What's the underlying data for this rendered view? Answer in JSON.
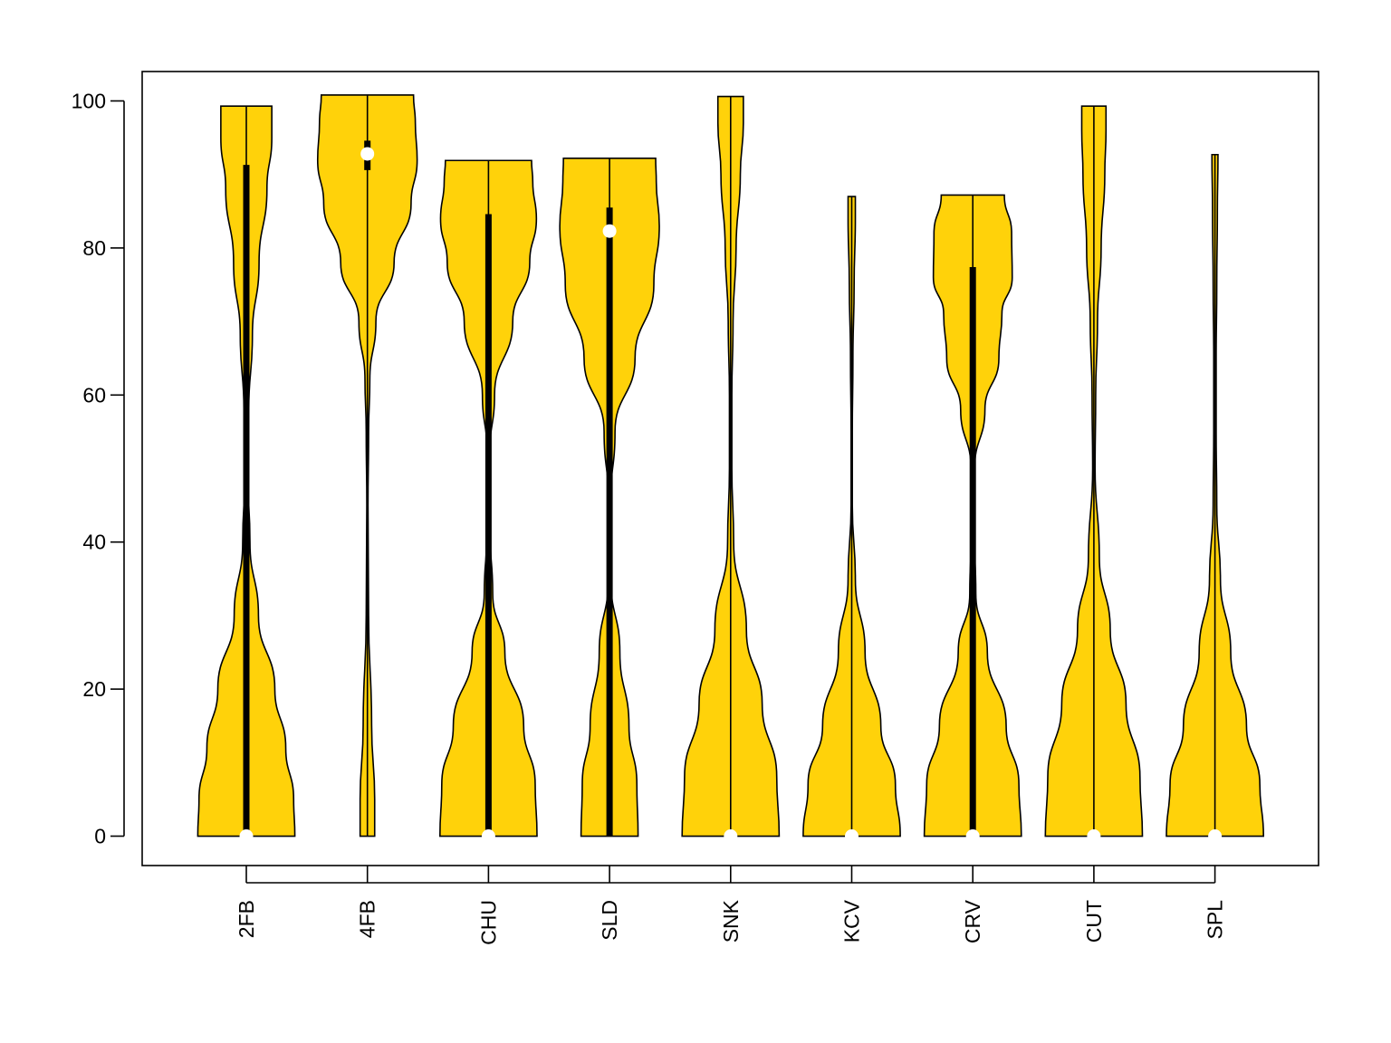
{
  "chart_data": {
    "type": "violin",
    "title": "",
    "xlabel": "",
    "ylabel": "",
    "categories": [
      "2FB",
      "4FB",
      "CHU",
      "SLD",
      "SNK",
      "KCV",
      "CRV",
      "CUT",
      "SPL"
    ],
    "ylim": [
      -4,
      104
    ],
    "yticks": [
      0,
      20,
      40,
      60,
      80,
      100
    ],
    "ytick_labels": [
      "0",
      "20",
      "40",
      "60",
      "80",
      "100"
    ],
    "grid": false,
    "legend": "none",
    "colors": {
      "fill": "#FFD20A",
      "outline": "#000000",
      "median": "#FFFFFF",
      "frame": "#000000"
    },
    "violins": [
      {
        "name": "2FB",
        "min": 0,
        "max": 99.3,
        "q1": 0,
        "median": 0,
        "q3": 91.3,
        "profile": [
          [
            0,
            0.8
          ],
          [
            5,
            0.78
          ],
          [
            12,
            0.65
          ],
          [
            20,
            0.47
          ],
          [
            30,
            0.2
          ],
          [
            40,
            0.06
          ],
          [
            50,
            0.02
          ],
          [
            58,
            0.04
          ],
          [
            68,
            0.1
          ],
          [
            78,
            0.21
          ],
          [
            88,
            0.34
          ],
          [
            95,
            0.42
          ],
          [
            99.3,
            0.42
          ]
        ]
      },
      {
        "name": "4FB",
        "min": 0,
        "max": 100.8,
        "q1": 90.6,
        "median": 92.8,
        "q3": 94.6,
        "profile": [
          [
            0,
            0.12
          ],
          [
            5,
            0.12
          ],
          [
            15,
            0.07
          ],
          [
            30,
            0.02
          ],
          [
            45,
            0.01
          ],
          [
            55,
            0.02
          ],
          [
            62,
            0.04
          ],
          [
            70,
            0.14
          ],
          [
            78,
            0.44
          ],
          [
            86,
            0.72
          ],
          [
            92,
            0.82
          ],
          [
            97,
            0.79
          ],
          [
            100.8,
            0.76
          ]
        ]
      },
      {
        "name": "CHU",
        "min": 0,
        "max": 91.9,
        "q1": 0,
        "median": 0,
        "q3": 84.6,
        "profile": [
          [
            0,
            0.8
          ],
          [
            7,
            0.77
          ],
          [
            15,
            0.58
          ],
          [
            25,
            0.27
          ],
          [
            33,
            0.07
          ],
          [
            42,
            0.02
          ],
          [
            52,
            0.02
          ],
          [
            60,
            0.1
          ],
          [
            70,
            0.4
          ],
          [
            78,
            0.68
          ],
          [
            84,
            0.79
          ],
          [
            89,
            0.73
          ],
          [
            91.9,
            0.71
          ]
        ]
      },
      {
        "name": "SLD",
        "min": 0,
        "max": 92.2,
        "q1": 0,
        "median": 82.3,
        "q3": 85.5,
        "profile": [
          [
            0,
            0.47
          ],
          [
            7,
            0.45
          ],
          [
            15,
            0.32
          ],
          [
            25,
            0.17
          ],
          [
            35,
            0.02
          ],
          [
            45,
            0.01
          ],
          [
            55,
            0.09
          ],
          [
            65,
            0.42
          ],
          [
            75,
            0.73
          ],
          [
            83,
            0.82
          ],
          [
            89,
            0.77
          ],
          [
            92.2,
            0.76
          ]
        ]
      },
      {
        "name": "SNK",
        "min": 0,
        "max": 100.6,
        "q1": 0,
        "median": 0,
        "q3": 0,
        "profile": [
          [
            0,
            0.8
          ],
          [
            8,
            0.76
          ],
          [
            18,
            0.52
          ],
          [
            28,
            0.26
          ],
          [
            40,
            0.05
          ],
          [
            50,
            0.02
          ],
          [
            60,
            0.02
          ],
          [
            70,
            0.04
          ],
          [
            80,
            0.09
          ],
          [
            90,
            0.16
          ],
          [
            97,
            0.21
          ],
          [
            100.6,
            0.21
          ]
        ]
      },
      {
        "name": "KCV",
        "min": 0,
        "max": 87.0,
        "q1": 0,
        "median": 0,
        "q3": 0,
        "profile": [
          [
            0,
            0.8
          ],
          [
            7,
            0.72
          ],
          [
            15,
            0.48
          ],
          [
            25,
            0.22
          ],
          [
            35,
            0.06
          ],
          [
            45,
            0.01
          ],
          [
            55,
            0.01
          ],
          [
            65,
            0.02
          ],
          [
            75,
            0.04
          ],
          [
            84,
            0.06
          ],
          [
            87,
            0.06
          ]
        ]
      },
      {
        "name": "CRV",
        "min": 0,
        "max": 87.2,
        "q1": 0,
        "median": 0,
        "q3": 77.4,
        "profile": [
          [
            0,
            0.8
          ],
          [
            7,
            0.76
          ],
          [
            15,
            0.55
          ],
          [
            25,
            0.24
          ],
          [
            33,
            0.05
          ],
          [
            42,
            0.02
          ],
          [
            50,
            0.03
          ],
          [
            58,
            0.2
          ],
          [
            65,
            0.43
          ],
          [
            71,
            0.48
          ],
          [
            76,
            0.65
          ],
          [
            82,
            0.64
          ],
          [
            87.2,
            0.52
          ]
        ]
      },
      {
        "name": "CUT",
        "min": 0,
        "max": 99.3,
        "q1": 0,
        "median": 0,
        "q3": 0,
        "profile": [
          [
            0,
            0.8
          ],
          [
            8,
            0.76
          ],
          [
            18,
            0.53
          ],
          [
            28,
            0.27
          ],
          [
            38,
            0.09
          ],
          [
            50,
            0.02
          ],
          [
            60,
            0.03
          ],
          [
            70,
            0.06
          ],
          [
            80,
            0.12
          ],
          [
            90,
            0.18
          ],
          [
            96,
            0.2
          ],
          [
            99.3,
            0.2
          ]
        ]
      },
      {
        "name": "SPL",
        "min": 0,
        "max": 92.7,
        "q1": 0,
        "median": 0,
        "q3": 0,
        "profile": [
          [
            0,
            0.8
          ],
          [
            7,
            0.74
          ],
          [
            15,
            0.52
          ],
          [
            25,
            0.26
          ],
          [
            35,
            0.09
          ],
          [
            45,
            0.03
          ],
          [
            55,
            0.02
          ],
          [
            65,
            0.02
          ],
          [
            75,
            0.03
          ],
          [
            85,
            0.04
          ],
          [
            92.7,
            0.05
          ]
        ]
      }
    ]
  }
}
